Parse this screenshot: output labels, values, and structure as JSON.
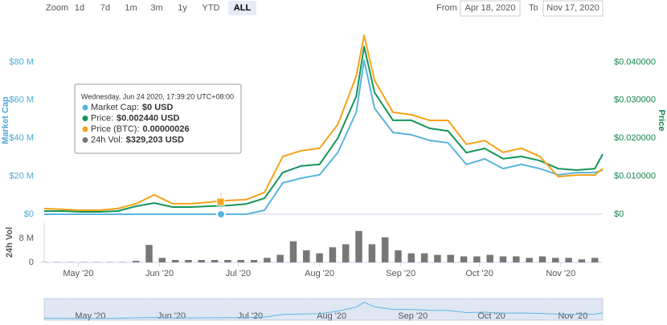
{
  "chart_data": {
    "type": "line",
    "zoom_label": "Zoom",
    "zoom_buttons": [
      "1d",
      "7d",
      "1m",
      "3m",
      "1y",
      "YTD",
      "ALL"
    ],
    "zoom_active": 6,
    "from_label": "From",
    "from": "Apr 18, 2020",
    "to_label": "To",
    "to": "Nov 17, 2020",
    "y_label": "Market Cap",
    "y2_label": "Price",
    "vol_label": "24h Vol",
    "xlim": [
      0,
      213
    ],
    "xticks": [
      {
        "value": 13,
        "label": "May '20"
      },
      {
        "value": 44,
        "label": "Jun '20"
      },
      {
        "value": 74,
        "label": "Jul '20"
      },
      {
        "value": 105,
        "label": "Aug '20"
      },
      {
        "value": 136,
        "label": "Sep '20"
      },
      {
        "value": 166,
        "label": "Oct '20"
      },
      {
        "value": 197,
        "label": "Nov '20"
      }
    ],
    "ylim": [
      0,
      100000000
    ],
    "yticks": [
      {
        "value": 0,
        "label": "$0"
      },
      {
        "value": 20000000,
        "label": "$20 M"
      },
      {
        "value": 40000000,
        "label": "$40 M"
      },
      {
        "value": 60000000,
        "label": "$60 M"
      },
      {
        "value": 80000000,
        "label": "$80 M"
      }
    ],
    "y2lim": [
      0,
      0.05
    ],
    "y2ticks": [
      {
        "value": 0,
        "label": "$0"
      },
      {
        "value": 0.01,
        "label": "$0.010000"
      },
      {
        "value": 0.02,
        "label": "$0.020000"
      },
      {
        "value": 0.03,
        "label": "$0.030000"
      },
      {
        "value": 0.04,
        "label": "$0.040000"
      }
    ],
    "y3lim": [
      0,
      4.7e-06
    ],
    "vol_ylim": [
      0,
      13000000
    ],
    "vol_yticks": [
      0,
      {
        "value": 8000000,
        "label": "8 M"
      }
    ],
    "x": [
      0,
      7,
      14,
      21,
      28,
      35,
      42,
      49,
      56,
      63,
      70,
      77,
      84,
      91,
      98,
      105,
      112,
      119,
      122,
      126,
      133,
      140,
      147,
      154,
      161,
      168,
      175,
      182,
      189,
      196,
      203,
      210,
      213
    ],
    "series": [
      {
        "axis": "y",
        "color": "#5ab4de",
        "values": [
          0,
          0,
          0,
          0,
          0,
          0,
          0,
          0,
          0,
          0,
          0,
          0,
          2100000,
          16500000,
          19000000,
          20700000,
          32500000,
          53600000,
          81000000,
          55700000,
          43000000,
          41800000,
          38800000,
          37600000,
          26200000,
          29100000,
          24000000,
          26200000,
          24000000,
          20700000,
          21900000,
          21900000,
          23200000
        ]
      },
      {
        "axis": "y2",
        "color": "#14955a",
        "values": [
          0.00084,
          0.00084,
          0.00063,
          0.00063,
          0.00084,
          0.0021,
          0.00295,
          0.0019,
          0.0019,
          0.0021,
          0.0023,
          0.0027,
          0.0042,
          0.011,
          0.0127,
          0.0131,
          0.02,
          0.031,
          0.0441,
          0.032,
          0.0247,
          0.0247,
          0.0226,
          0.0219,
          0.0162,
          0.0173,
          0.0146,
          0.0152,
          0.0141,
          0.012,
          0.0116,
          0.012,
          0.0158
        ]
      },
      {
        "axis": "y3",
        "color": "#f5a31a",
        "values": [
          1.4e-07,
          1.2e-07,
          9.9e-08,
          9.9e-08,
          1.4e-07,
          2.6e-07,
          4.8e-07,
          2.6e-07,
          2.6e-07,
          3e-07,
          3.4e-07,
          3.6e-07,
          5.4e-07,
          1.43e-06,
          1.57e-06,
          1.63e-06,
          2.22e-06,
          3.41e-06,
          4.42e-06,
          3.31e-06,
          2.52e-06,
          2.46e-06,
          2.32e-06,
          2.32e-06,
          1.73e-06,
          1.82e-06,
          1.53e-06,
          1.63e-06,
          1.43e-06,
          9.3e-07,
          9.7e-07,
          9.7e-07,
          1.13e-06
        ]
      }
    ],
    "volume": {
      "color": "#777777",
      "x": [
        0,
        5,
        10,
        15,
        20,
        25,
        30,
        35,
        40,
        45,
        50,
        55,
        60,
        65,
        70,
        75,
        80,
        85,
        90,
        95,
        100,
        105,
        110,
        115,
        120,
        125,
        130,
        135,
        140,
        145,
        150,
        155,
        160,
        165,
        170,
        175,
        180,
        185,
        190,
        195,
        200,
        205,
        210
      ],
      "values": [
        100000,
        100000,
        100000,
        100000,
        100000,
        100000,
        100000,
        500000,
        5800000,
        1500000,
        800000,
        800000,
        800000,
        800000,
        800000,
        800000,
        800000,
        1500000,
        2500000,
        7000000,
        4000000,
        3000000,
        5000000,
        6000000,
        10400000,
        6000000,
        8300000,
        4000000,
        3000000,
        3000000,
        2500000,
        2500000,
        2000000,
        2000000,
        2500000,
        2000000,
        2000000,
        1500000,
        2000000,
        1500000,
        1500000,
        1000000,
        1500000
      ]
    },
    "tooltip": {
      "header": "Wednesday, Jun 24 2020, 17:39:20 UTC+08:00",
      "rows": [
        {
          "label": "Market Cap:",
          "value": "$0 USD"
        },
        {
          "label": "Price:",
          "value": "$0.002440 USD"
        },
        {
          "label": "Price (BTC):",
          "value": "0.00000026"
        },
        {
          "label": "24h Vol:",
          "value": "$329,203 USD"
        }
      ]
    }
  }
}
